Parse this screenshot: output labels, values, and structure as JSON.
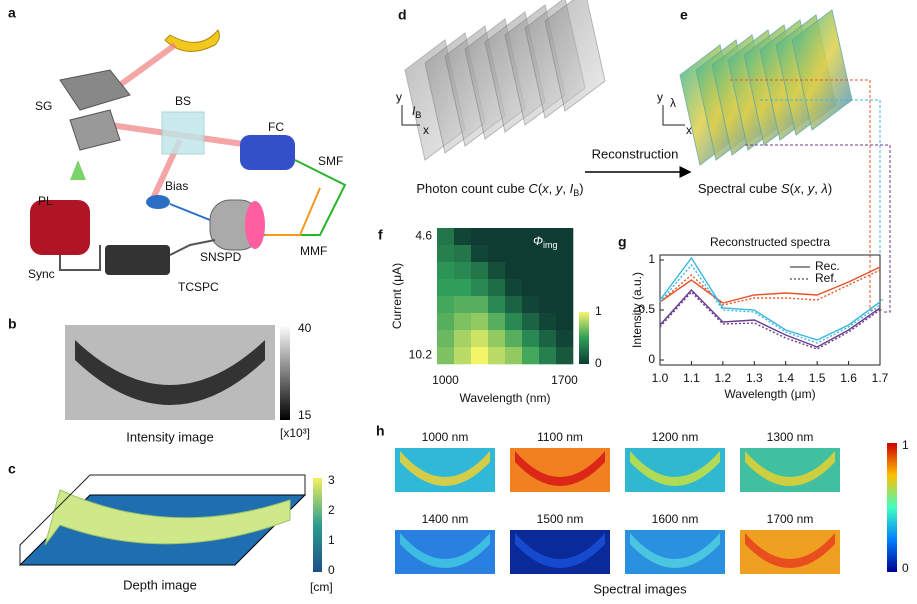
{
  "panel_labels": [
    "a",
    "b",
    "c",
    "d",
    "e",
    "f",
    "g",
    "h"
  ],
  "setup_labels": [
    "SG",
    "BS",
    "FC",
    "SMF",
    "PL",
    "Bias",
    "SNSPD",
    "MMF",
    "Sync",
    "TCSPC"
  ],
  "intensity": {
    "caption": "Intensity image",
    "colorbar_ticks": [
      "40",
      "15"
    ],
    "unit": "[x10³]"
  },
  "depth": {
    "caption": "Depth image",
    "colorbar_ticks": [
      "3",
      "2",
      "1",
      "0"
    ],
    "unit": "[cm]"
  },
  "photon_cube": {
    "axes": [
      "y",
      "x"
    ],
    "axis_I": [
      {
        "text": "I",
        "style": "italic"
      },
      {
        "text": "B",
        "style": "sub"
      }
    ],
    "caption": [
      {
        "text": "Photon count cube ",
        "style": "normal"
      },
      {
        "text": "C",
        "style": "italic"
      },
      {
        "text": "(",
        "style": "normal"
      },
      {
        "text": "x",
        "style": "italic"
      },
      {
        "text": ", ",
        "style": "normal"
      },
      {
        "text": "y",
        "style": "italic"
      },
      {
        "text": ", ",
        "style": "normal"
      },
      {
        "text": "I",
        "style": "italic"
      },
      {
        "text": "B",
        "style": "sub"
      },
      {
        "text": ")",
        "style": "normal"
      }
    ]
  },
  "spectral_cube": {
    "axes": [
      "y",
      "λ",
      "x"
    ],
    "caption": [
      {
        "text": "Spectral cube ",
        "style": "normal"
      },
      {
        "text": "S",
        "style": "italic"
      },
      {
        "text": "(",
        "style": "normal"
      },
      {
        "text": "x",
        "style": "italic"
      },
      {
        "text": ", ",
        "style": "normal"
      },
      {
        "text": "y",
        "style": "italic"
      },
      {
        "text": ", ",
        "style": "normal"
      },
      {
        "text": "λ",
        "style": "italic"
      },
      {
        "text": ")",
        "style": "normal"
      }
    ]
  },
  "arrow_label": "Reconstruction",
  "spectral_images": {
    "labels": [
      "1000 nm",
      "1100 nm",
      "1200 nm",
      "1300 nm",
      "1400 nm",
      "1500 nm",
      "1600 nm",
      "1700 nm"
    ],
    "colorbar_ticks": [
      "1",
      "0"
    ],
    "caption": "Spectral images"
  },
  "chart_data": [
    {
      "type": "heatmap",
      "xlabel": "Wavelength (nm)",
      "ylabel": "Current (μA)",
      "annotation": [
        {
          "text": "Φ",
          "style": "italic"
        },
        {
          "text": "img",
          "style": "sub"
        }
      ],
      "xlim": [
        1000,
        1700
      ],
      "xticks": [
        1000,
        1700
      ],
      "ylim": [
        4.6,
        10.2
      ],
      "yticks": [
        4.6,
        10.2
      ],
      "colorbar_ticks": [
        0,
        1
      ],
      "values": [
        [
          0.3,
          0.05,
          0,
          0,
          0,
          0,
          0,
          0
        ],
        [
          0.35,
          0.3,
          0.05,
          0,
          0,
          0,
          0,
          0
        ],
        [
          0.45,
          0.4,
          0.3,
          0.1,
          0,
          0,
          0,
          0
        ],
        [
          0.5,
          0.5,
          0.4,
          0.25,
          0.05,
          0,
          0,
          0
        ],
        [
          0.55,
          0.6,
          0.6,
          0.4,
          0.2,
          0.05,
          0,
          0
        ],
        [
          0.6,
          0.7,
          0.75,
          0.6,
          0.4,
          0.2,
          0.05,
          0
        ],
        [
          0.65,
          0.8,
          0.9,
          0.75,
          0.6,
          0.4,
          0.2,
          0.05
        ],
        [
          0.7,
          0.85,
          1,
          0.85,
          0.75,
          0.55,
          0.35,
          0.15
        ]
      ]
    },
    {
      "type": "line",
      "title": "Reconstructed spectra",
      "xlabel": "Wavelength (μm)",
      "ylabel": "Intensity (a.u.)",
      "x": [
        1.0,
        1.1,
        1.2,
        1.3,
        1.4,
        1.5,
        1.6,
        1.7
      ],
      "xlim": [
        1.0,
        1.7
      ],
      "xticks": [
        {
          "value": 1.0,
          "label": "1.0"
        },
        {
          "value": 1.1,
          "label": "1.1"
        },
        {
          "value": 1.2,
          "label": "1.2"
        },
        {
          "value": 1.3,
          "label": "1.3"
        },
        {
          "value": 1.4,
          "label": "1.4"
        },
        {
          "value": 1.5,
          "label": "1.5"
        },
        {
          "value": 1.6,
          "label": "1.6"
        },
        {
          "value": 1.7,
          "label": "1.7"
        }
      ],
      "ylim": [
        -0.05,
        1.05
      ],
      "yticks": [
        0,
        0.5,
        1
      ],
      "legend": [
        {
          "label": "Rec.",
          "style": "solid"
        },
        {
          "label": "Ref.",
          "style": "dotted"
        }
      ],
      "series": [
        {
          "color": "#e8542a",
          "style": "solid",
          "values": [
            0.58,
            0.8,
            0.57,
            0.65,
            0.67,
            0.65,
            0.78,
            0.93
          ]
        },
        {
          "color": "#e8542a",
          "style": "dotted",
          "values": [
            0.58,
            0.85,
            0.55,
            0.62,
            0.62,
            0.6,
            0.75,
            0.9
          ]
        },
        {
          "color": "#3ab7e0",
          "style": "solid",
          "values": [
            0.6,
            1.02,
            0.52,
            0.5,
            0.3,
            0.2,
            0.35,
            0.58
          ]
        },
        {
          "color": "#3ab7e0",
          "style": "dotted",
          "values": [
            0.58,
            0.95,
            0.5,
            0.48,
            0.28,
            0.17,
            0.33,
            0.55
          ]
        },
        {
          "color": "#6a3c8f",
          "style": "solid",
          "values": [
            0.35,
            0.7,
            0.38,
            0.4,
            0.25,
            0.13,
            0.3,
            0.52
          ]
        },
        {
          "color": "#6a3c8f",
          "style": "dotted",
          "values": [
            0.33,
            0.68,
            0.36,
            0.37,
            0.22,
            0.11,
            0.28,
            0.5
          ]
        }
      ]
    }
  ]
}
